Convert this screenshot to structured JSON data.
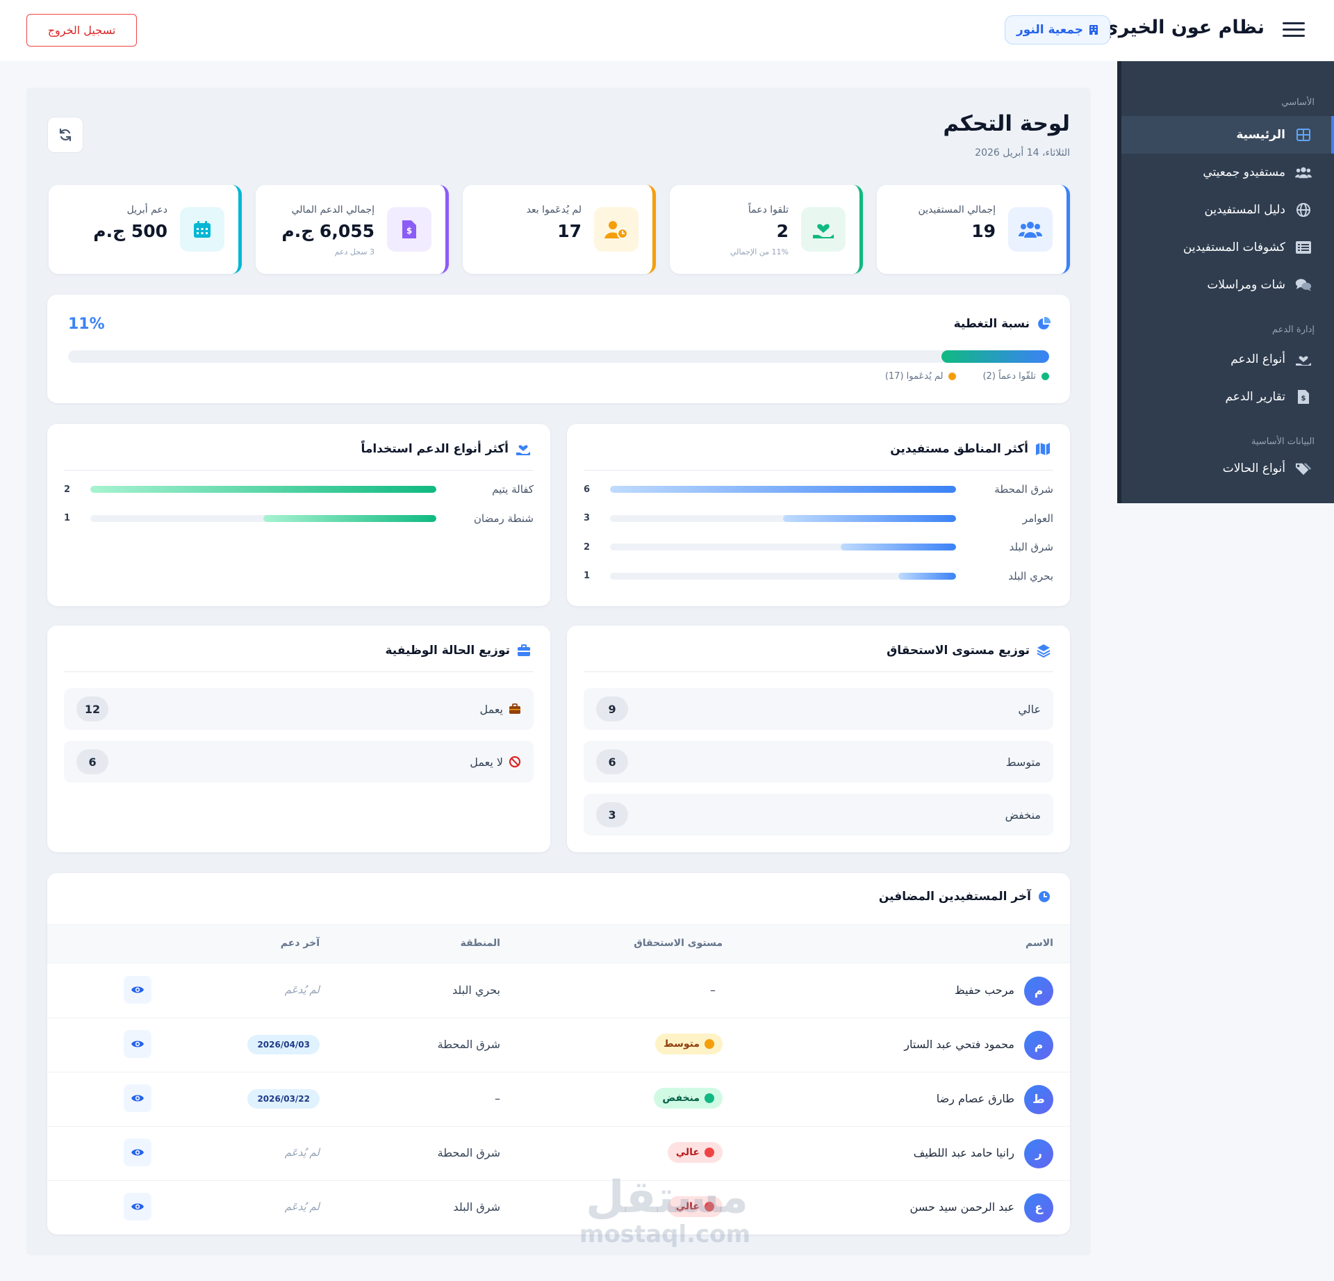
{
  "header": {
    "app_title": "نظام عون الخيري",
    "org_badge": "جمعية النور",
    "logout_label": "تسجيل الخروج"
  },
  "sidebar": {
    "sections": [
      {
        "title": "الأساسي",
        "items": [
          {
            "label": "الرئيسية",
            "icon": "dashboard-grid-icon",
            "active": true
          },
          {
            "label": "مستفيدو جمعيتي",
            "icon": "users-icon"
          },
          {
            "label": "دليل المستفيدين",
            "icon": "globe-icon"
          },
          {
            "label": "كشوفات المستفيدين",
            "icon": "list-icon"
          },
          {
            "label": "شات ومراسلات",
            "icon": "chat-icon"
          }
        ]
      },
      {
        "title": "إدارة الدعم",
        "items": [
          {
            "label": "أنواع الدعم",
            "icon": "hand-heart-icon"
          },
          {
            "label": "تقارير الدعم",
            "icon": "file-invoice-icon"
          }
        ]
      },
      {
        "title": "البيانات الأساسية",
        "items": [
          {
            "label": "أنواع الحالات",
            "icon": "tags-icon"
          }
        ]
      }
    ]
  },
  "page": {
    "title": "لوحة التحكم",
    "date": "الثلاثاء، 14 أبريل 2026"
  },
  "stats": [
    {
      "label": "إجمالي المستفيدين",
      "value": "19",
      "sub": "",
      "icon": "users-icon",
      "color": "#3b82f6"
    },
    {
      "label": "تلقوا دعماً",
      "value": "2",
      "sub": "11% من الإجمالي",
      "icon": "hand-heart-icon",
      "color": "#10b981"
    },
    {
      "label": "لم يُدعَموا بعد",
      "value": "17",
      "sub": "",
      "icon": "user-clock-icon",
      "color": "#f59e0b"
    },
    {
      "label": "إجمالي الدعم المالي",
      "value": "6,055 ج.م",
      "sub": "3 سجل دعم",
      "icon": "file-invoice-icon",
      "color": "#8b5cf6"
    },
    {
      "label": "دعم أبريل",
      "value": "500 ج.م",
      "sub": "",
      "icon": "calendar-icon",
      "color": "#06b6d4"
    }
  ],
  "coverage": {
    "title": "نسبة التغطية",
    "percent_label": "11%",
    "percent": 0.11,
    "legend_supported": "تلقّوا دعماً (2)",
    "legend_unsupported": "لم يُدعَموا (17)",
    "color_supported": "#10b981",
    "color_unsupported": "#f59e0b"
  },
  "regions": {
    "title": "أكثر المناطق مستفيدين",
    "max": 6,
    "rows": [
      {
        "label": "شرق المحطة",
        "value": 6
      },
      {
        "label": "العوامر",
        "value": 3
      },
      {
        "label": "شرق البلد",
        "value": 2
      },
      {
        "label": "بحري البلد",
        "value": 1
      }
    ]
  },
  "support_types": {
    "title": "أكثر أنواع الدعم استخداماً",
    "max": 2,
    "rows": [
      {
        "label": "كفالة يتيم",
        "value": 2
      },
      {
        "label": "شنطة رمضان",
        "value": 1
      }
    ]
  },
  "eligibility": {
    "title": "توزيع مستوى الاستحقاق",
    "rows": [
      {
        "label": "عالي",
        "count": "9"
      },
      {
        "label": "متوسط",
        "count": "6"
      },
      {
        "label": "منخفض",
        "count": "3"
      }
    ]
  },
  "employment": {
    "title": "توزيع الحالة الوظيفية",
    "rows": [
      {
        "label": "يعمل",
        "count": "12",
        "icon": "briefcase-icon"
      },
      {
        "label": "لا يعمل",
        "count": "6",
        "icon": "ban-icon"
      }
    ]
  },
  "latest": {
    "title": "آخر المستفيدين المضافين",
    "headers": {
      "name": "الاسم",
      "level": "مستوى الاستحقاق",
      "region": "المنطقة",
      "last": "آخر دعم"
    },
    "not_supported_text": "لم يُدعَم",
    "rows": [
      {
        "initial": "م",
        "name": "مرحب حفيظ",
        "level": "–",
        "level_type": "none",
        "region": "بحري البلد",
        "last": ""
      },
      {
        "initial": "م",
        "name": "محمود فتحي عبد الستار",
        "level": "متوسط",
        "level_type": "med",
        "region": "شرق المحطة",
        "last": "2026/04/03"
      },
      {
        "initial": "ط",
        "name": "طارق عصام رضا",
        "level": "منخفض",
        "level_type": "low",
        "region": "–",
        "last": "2026/03/22"
      },
      {
        "initial": "ر",
        "name": "رانيا حامد عبد اللطيف",
        "level": "عالي",
        "level_type": "high",
        "region": "شرق المحطة",
        "last": ""
      },
      {
        "initial": "ع",
        "name": "عبد الرحمن سيد حسن",
        "level": "عالي",
        "level_type": "high",
        "region": "شرق البلد",
        "last": ""
      }
    ]
  },
  "watermark": {
    "line1": "مستقل",
    "line2": "mostaql.com"
  }
}
